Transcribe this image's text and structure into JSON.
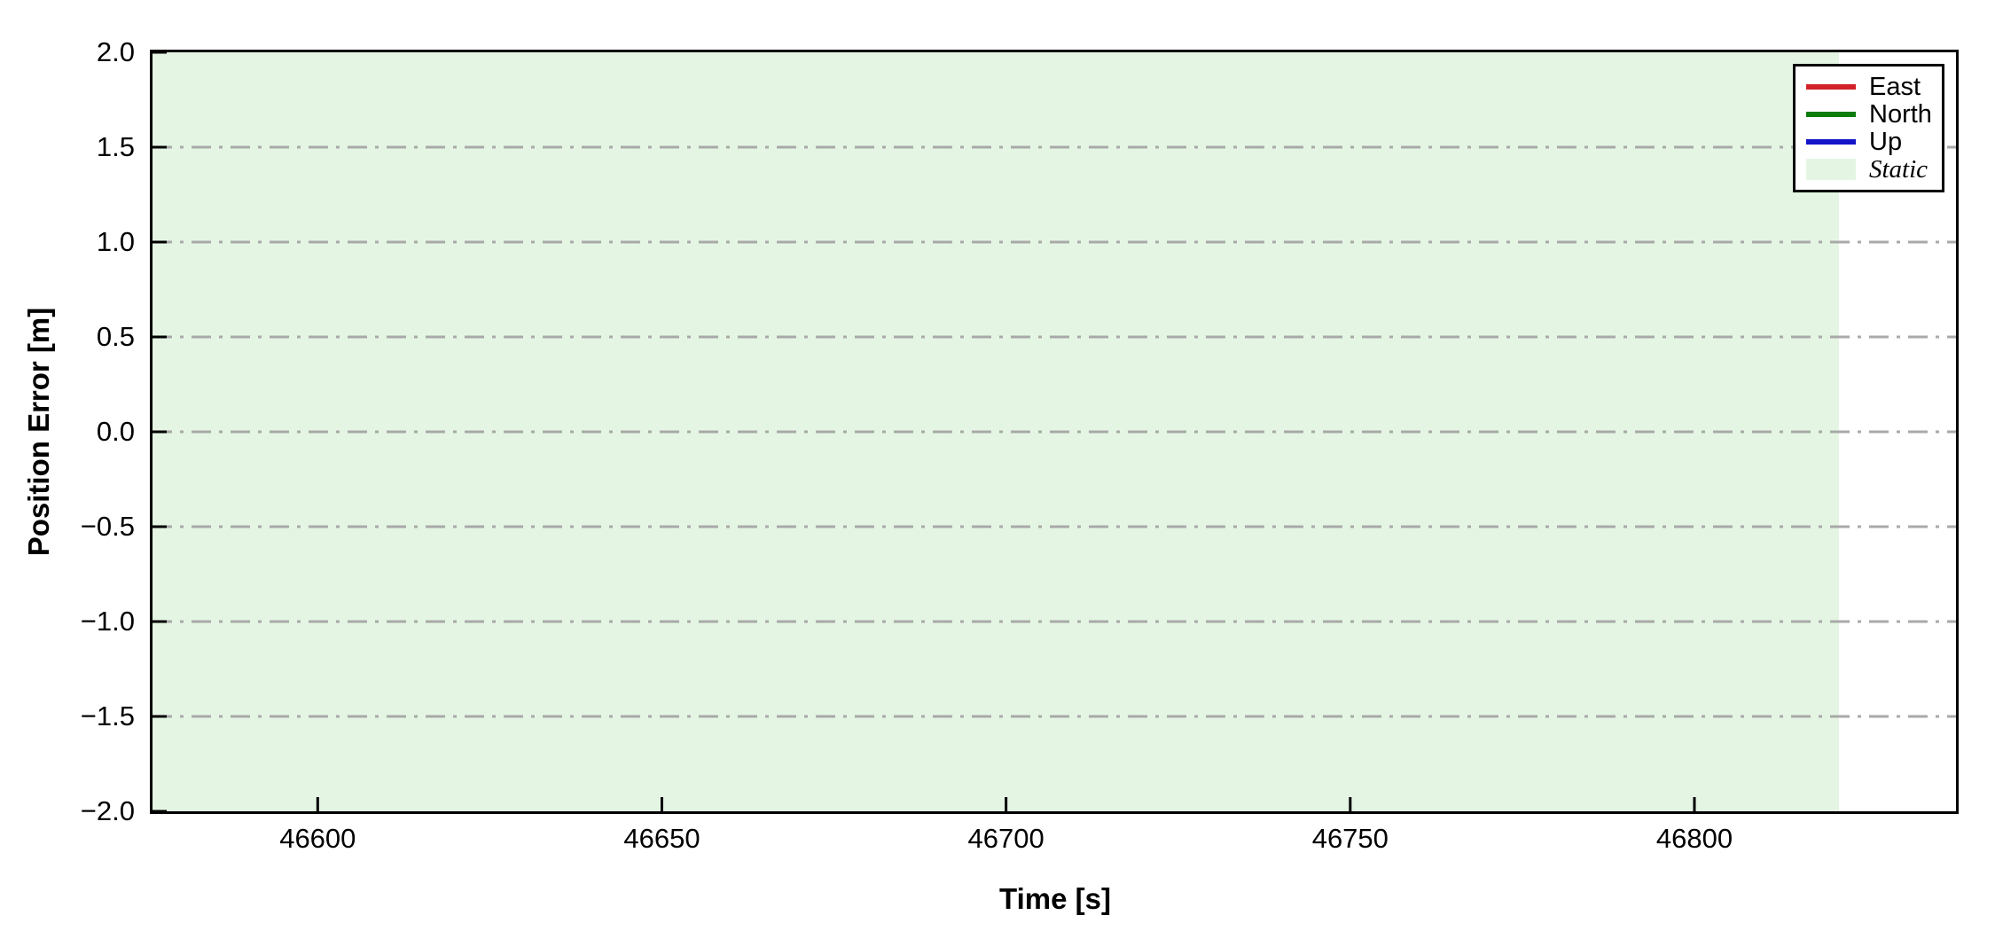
{
  "chart_data": {
    "type": "line",
    "title": "",
    "xlabel": "Time [s]",
    "ylabel": "Position Error [m]",
    "xlim": [
      46576,
      46838
    ],
    "ylim": [
      -2.0,
      2.0
    ],
    "x_ticks": [
      46600,
      46650,
      46700,
      46750,
      46800
    ],
    "x_tick_labels": [
      "46600",
      "46650",
      "46700",
      "46750",
      "46800"
    ],
    "y_ticks": [
      2.0,
      1.5,
      1.0,
      0.5,
      0.0,
      -0.5,
      -1.0,
      -1.5,
      -2.0
    ],
    "y_tick_labels": [
      "2.0",
      "1.5",
      "1.0",
      "0.5",
      "0.0",
      "−0.5",
      "−1.0",
      "−1.5",
      "−2.0"
    ],
    "grid": {
      "axis": "y",
      "style": "dash-dot",
      "color": "#a9a9a9",
      "at": [
        1.5,
        1.0,
        0.5,
        0.0,
        -0.5,
        -1.0,
        -1.5
      ]
    },
    "axes_color": "#000000",
    "tick_direction": "in",
    "series": [
      {
        "name": "East",
        "color": "#d22128",
        "values": [],
        "note": "no data line visible within y-range"
      },
      {
        "name": "North",
        "color": "#0c7c0c",
        "values": [],
        "note": "no data line visible within y-range"
      },
      {
        "name": "Up",
        "color": "#1414c8",
        "values": [],
        "note": "no data line visible within y-range"
      }
    ],
    "regions": [
      {
        "name": "Static",
        "color": "#e4f6e3",
        "x_start": 46576,
        "x_end": 46821
      }
    ],
    "legend": {
      "position": "upper right",
      "entries": [
        "East",
        "North",
        "Up",
        "Static"
      ]
    }
  }
}
